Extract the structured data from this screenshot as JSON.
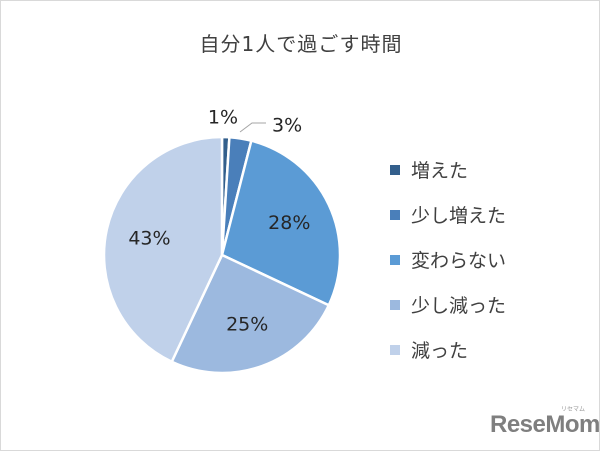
{
  "chart_data": {
    "type": "pie",
    "title": "自分1人で過ごす時間",
    "categories": [
      "増えた",
      "少し増えた",
      "変わらない",
      "少し減った",
      "減った"
    ],
    "values": [
      1,
      3,
      28,
      25,
      43
    ],
    "labels": [
      "1%",
      "3%",
      "28%",
      "25%",
      "43%"
    ],
    "colors": [
      "#335f8c",
      "#4a7fba",
      "#5b9bd5",
      "#9cb9df",
      "#c0d1ea"
    ],
    "legend": "right",
    "start_angle": "12 o'clock",
    "direction": "clockwise"
  },
  "watermark": {
    "logo_text": "ReseMom",
    "kana": "リセマム"
  }
}
